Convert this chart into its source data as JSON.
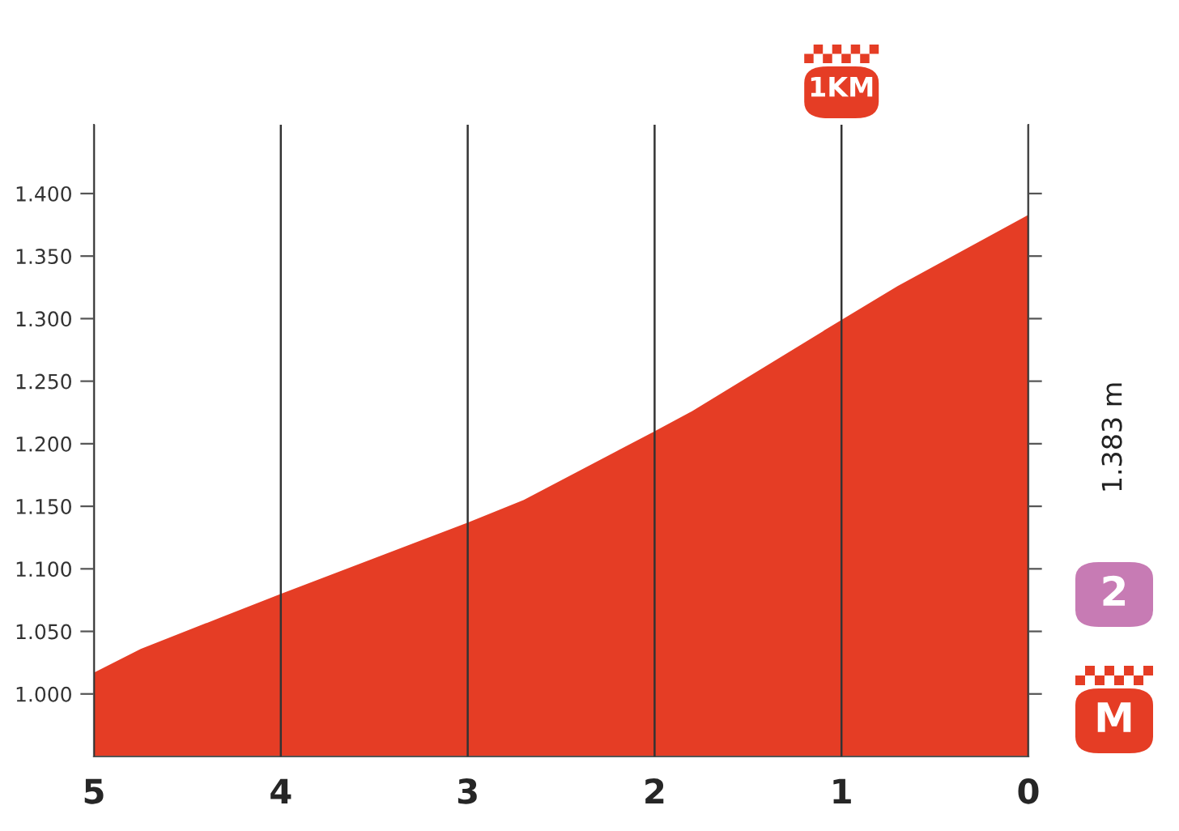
{
  "chart_data": {
    "type": "area",
    "x": [
      5,
      4.75,
      4,
      3,
      2.7,
      2,
      1.8,
      1,
      0.7,
      0
    ],
    "series": [
      {
        "color": "#e53d25",
        "values": [
          1017,
          1036,
          1080,
          1137,
          1155,
          1210,
          1226,
          1299,
          1326,
          1383
        ]
      }
    ],
    "xlim": [
      5,
      0
    ],
    "xticks": [
      5,
      4,
      3,
      2,
      1,
      0
    ],
    "ylim": [
      950,
      1455
    ],
    "yticks": [
      {
        "value": 1000,
        "label": "1.000"
      },
      {
        "value": 1050,
        "label": "1.050"
      },
      {
        "value": 1100,
        "label": "1.100"
      },
      {
        "value": 1150,
        "label": "1.150"
      },
      {
        "value": 1200,
        "label": "1.200"
      },
      {
        "value": 1250,
        "label": "1.250"
      },
      {
        "value": 1300,
        "label": "1.300"
      },
      {
        "value": 1350,
        "label": "1.350"
      },
      {
        "value": 1400,
        "label": "1.400"
      }
    ],
    "grid": "x",
    "annotations": [
      "1.383 m",
      "1KM",
      "2",
      "M"
    ]
  }
}
